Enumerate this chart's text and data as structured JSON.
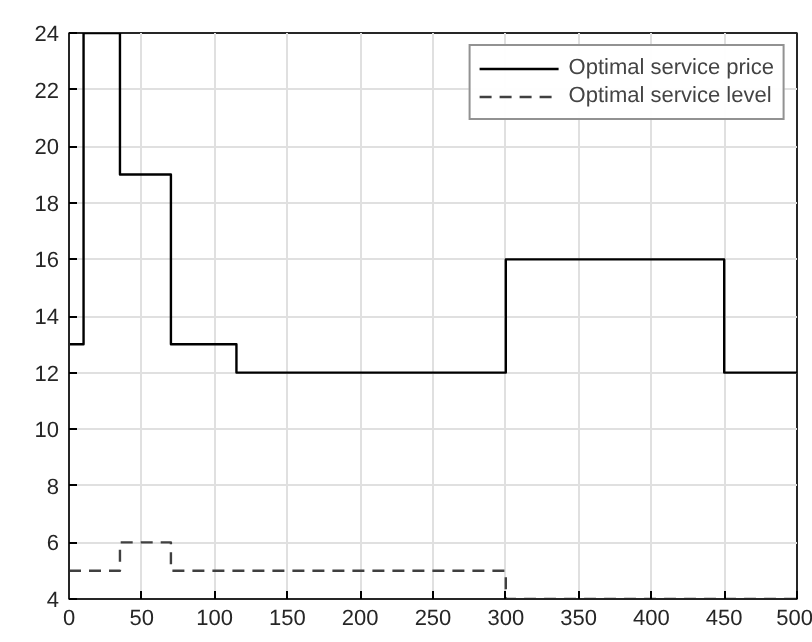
{
  "chart_data": {
    "type": "step",
    "xlim": [
      0,
      500
    ],
    "ylim": [
      4,
      24
    ],
    "xticks": [
      0,
      50,
      100,
      150,
      200,
      250,
      300,
      350,
      400,
      450,
      500
    ],
    "yticks": [
      4,
      6,
      8,
      10,
      12,
      14,
      16,
      18,
      20,
      22,
      24
    ],
    "grid": true,
    "legend": "top right",
    "series": [
      {
        "name": "Optimal service price",
        "color": "#000000",
        "line_style": "solid",
        "x": [
          0,
          10,
          35,
          70,
          115,
          300,
          450,
          500
        ],
        "values": [
          13,
          24,
          19,
          13,
          12,
          16,
          12,
          12
        ]
      },
      {
        "name": "Optimal service level",
        "color": "#404040",
        "line_style": "dashed",
        "x": [
          0,
          35,
          70,
          300,
          500
        ],
        "values": [
          5,
          6,
          5,
          4,
          4
        ]
      }
    ]
  }
}
